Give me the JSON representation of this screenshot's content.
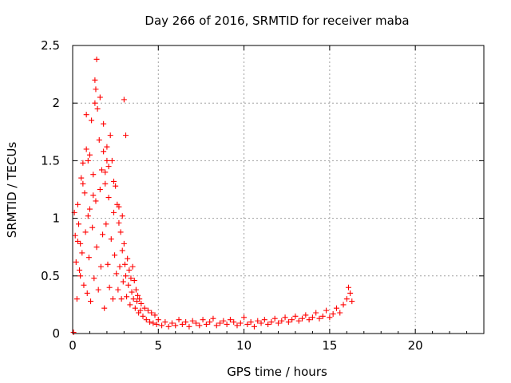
{
  "chart_data": {
    "type": "scatter",
    "title": "Day 266 of 2016, SRMTID for receiver maba",
    "xlabel": "GPS time / hours",
    "ylabel": "SRMTID / TECUs",
    "xlim": [
      0,
      24
    ],
    "ylim": [
      0,
      2.5
    ],
    "x_ticks": [
      "0",
      "5",
      "10",
      "15",
      "20"
    ],
    "y_ticks": [
      "0",
      "0.5",
      "1",
      "1.5",
      "2",
      "2.5"
    ],
    "grid": true,
    "legend": "none",
    "marker": "+",
    "color": "#ff0000",
    "series": [
      {
        "x": [
          0.05,
          0.1,
          0.15,
          0.2,
          0.25,
          0.3,
          0.35,
          0.4,
          0.45,
          0.5,
          0.55,
          0.6,
          0.65,
          0.7,
          0.75,
          0.8,
          0.85,
          0.9,
          0.95,
          1.0,
          1.05,
          1.1,
          1.15,
          1.2,
          1.25,
          1.3,
          1.35,
          1.4,
          1.45,
          1.5,
          1.55,
          1.6,
          1.65,
          1.7,
          1.75,
          1.8,
          1.85,
          1.9,
          1.95,
          2.0,
          2.05,
          2.1,
          2.15,
          2.2,
          2.25,
          2.3,
          2.35,
          2.4,
          2.45,
          2.5,
          2.55,
          2.6,
          2.65,
          2.7,
          2.75,
          2.8,
          2.85,
          2.9,
          2.95,
          3.0,
          3.05,
          3.1,
          3.15,
          3.2,
          3.25,
          3.3,
          3.35,
          3.4,
          3.45,
          3.5,
          3.55,
          3.6,
          3.65,
          3.7,
          3.75,
          3.8,
          3.85,
          3.9,
          3.95,
          4.0,
          4.1,
          4.2,
          4.3,
          4.4,
          4.5,
          4.6,
          4.7,
          4.8,
          4.9,
          5.0,
          5.2,
          5.4,
          5.6,
          5.8,
          6.0,
          6.2,
          6.4,
          6.6,
          6.8,
          7.0,
          7.2,
          7.4,
          7.6,
          7.8,
          8.0,
          8.2,
          8.4,
          8.6,
          8.8,
          9.0,
          9.2,
          9.4,
          9.6,
          9.8,
          10.0,
          10.2,
          10.4,
          10.6,
          10.8,
          11.0,
          11.2,
          11.4,
          11.6,
          11.8,
          12.0,
          12.2,
          12.4,
          12.6,
          12.8,
          13.0,
          13.2,
          13.4,
          13.6,
          13.8,
          14.0,
          14.2,
          14.4,
          14.6,
          14.8,
          15.0,
          15.2,
          15.4,
          15.6,
          15.8,
          16.0,
          16.1,
          16.2,
          16.3,
          0.3,
          0.6,
          0.9,
          1.2,
          1.4,
          1.6,
          1.8,
          2.1,
          2.4,
          2.7,
          3.0,
          1.3,
          1.35,
          0.8,
          1.0,
          2.0,
          3.1,
          0.45,
          1.9,
          2.9
        ],
        "y": [
          0.01,
          1.05,
          0.85,
          0.62,
          0.3,
          1.12,
          0.95,
          0.55,
          0.78,
          1.35,
          0.7,
          1.48,
          0.42,
          1.22,
          0.88,
          1.6,
          0.35,
          1.02,
          0.66,
          1.55,
          0.28,
          1.85,
          0.92,
          1.38,
          0.48,
          2.2,
          1.15,
          0.75,
          1.95,
          0.38,
          1.68,
          1.25,
          0.58,
          1.42,
          0.86,
          1.58,
          0.22,
          1.3,
          0.95,
          1.62,
          0.6,
          1.18,
          0.4,
          1.72,
          0.82,
          1.5,
          0.3,
          1.05,
          0.68,
          1.28,
          0.52,
          1.12,
          0.38,
          0.96,
          0.58,
          0.88,
          0.3,
          0.72,
          0.45,
          2.03,
          0.6,
          0.5,
          0.32,
          0.65,
          0.42,
          0.55,
          0.25,
          0.48,
          0.36,
          0.58,
          0.3,
          0.46,
          0.22,
          0.38,
          0.28,
          0.33,
          0.18,
          0.3,
          0.2,
          0.26,
          0.15,
          0.22,
          0.12,
          0.2,
          0.1,
          0.18,
          0.09,
          0.16,
          0.08,
          0.12,
          0.07,
          0.1,
          0.06,
          0.09,
          0.07,
          0.12,
          0.08,
          0.1,
          0.06,
          0.11,
          0.09,
          0.07,
          0.12,
          0.08,
          0.1,
          0.13,
          0.07,
          0.09,
          0.11,
          0.08,
          0.12,
          0.1,
          0.07,
          0.09,
          0.14,
          0.08,
          0.1,
          0.06,
          0.11,
          0.09,
          0.12,
          0.08,
          0.1,
          0.13,
          0.09,
          0.11,
          0.14,
          0.1,
          0.12,
          0.15,
          0.11,
          0.13,
          0.16,
          0.12,
          0.14,
          0.18,
          0.13,
          0.15,
          0.2,
          0.14,
          0.17,
          0.22,
          0.18,
          0.25,
          0.3,
          0.4,
          0.35,
          0.28,
          0.8,
          1.3,
          1.5,
          1.2,
          2.38,
          2.05,
          1.82,
          1.45,
          1.32,
          1.1,
          0.78,
          2.0,
          2.12,
          1.9,
          1.08,
          1.5,
          1.72,
          0.5,
          1.4,
          1.02
        ]
      }
    ]
  }
}
